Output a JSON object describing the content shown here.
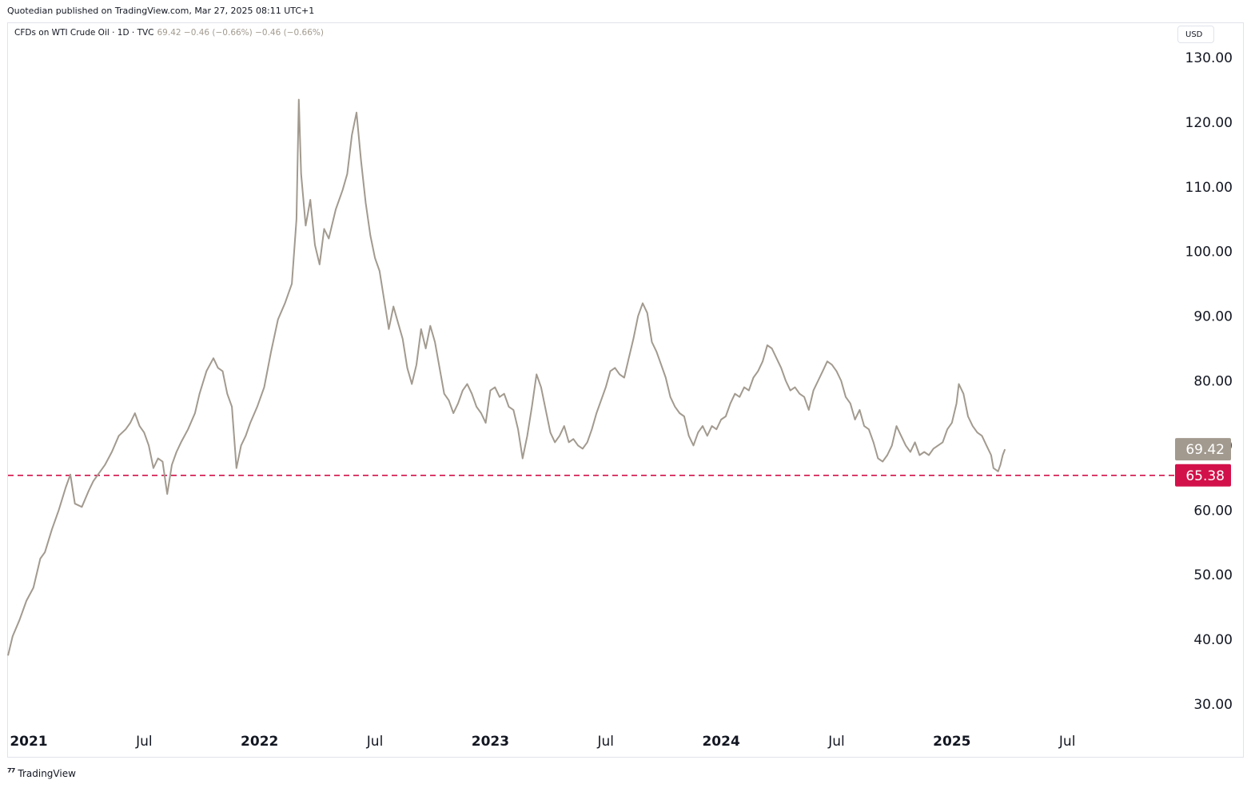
{
  "header": {
    "published_line": "Quotedian published on TradingView.com, Mar 27, 2025 08:11 UTC+1"
  },
  "legend": {
    "symbol": "CFDs on WTI Crude Oil · 1D · TVC",
    "values": "69.42  −0.46 (−0.66%)  −0.46 (−0.66%)"
  },
  "currency": "USD",
  "footer": {
    "brand": "TradingView",
    "logo_icon": "tradingview-logo-icon"
  },
  "colors": {
    "price_line": "#a29a8f",
    "support_line": "#d2114a",
    "last_price_bg": "#a29a8f"
  },
  "chart_data": {
    "type": "line",
    "title": "CFDs on WTI Crude Oil · 1D · TVC",
    "ylabel": "USD",
    "xlabel": "",
    "grid": false,
    "x_range": [
      2020.91,
      2025.96
    ],
    "ylim": [
      30,
      130
    ],
    "y_ticks": [
      30,
      40,
      50,
      60,
      70,
      80,
      90,
      100,
      110,
      120,
      130
    ],
    "y_tick_labels": [
      "30.00",
      "40.00",
      "50.00",
      "60.00",
      "70.00",
      "80.00",
      "90.00",
      "100.00",
      "110.00",
      "120.00",
      "130.00"
    ],
    "x_ticks": [
      {
        "x": 2021.0,
        "label": "2021",
        "bold": true
      },
      {
        "x": 2021.5,
        "label": "Jul",
        "bold": false
      },
      {
        "x": 2022.0,
        "label": "2022",
        "bold": true
      },
      {
        "x": 2022.5,
        "label": "Jul",
        "bold": false
      },
      {
        "x": 2023.0,
        "label": "2023",
        "bold": true
      },
      {
        "x": 2023.5,
        "label": "Jul",
        "bold": false
      },
      {
        "x": 2024.0,
        "label": "2024",
        "bold": true
      },
      {
        "x": 2024.5,
        "label": "Jul",
        "bold": false
      },
      {
        "x": 2025.0,
        "label": "2025",
        "bold": true
      },
      {
        "x": 2025.5,
        "label": "Jul",
        "bold": false
      }
    ],
    "series": [
      {
        "color": "#a29a8f",
        "points": [
          [
            2020.91,
            37.5
          ],
          [
            2020.93,
            40.5
          ],
          [
            2020.96,
            43.0
          ],
          [
            2020.99,
            46.0
          ],
          [
            2021.02,
            48.0
          ],
          [
            2021.05,
            52.5
          ],
          [
            2021.07,
            53.5
          ],
          [
            2021.1,
            57.0
          ],
          [
            2021.13,
            60.0
          ],
          [
            2021.16,
            63.5
          ],
          [
            2021.18,
            65.5
          ],
          [
            2021.2,
            61.0
          ],
          [
            2021.23,
            60.5
          ],
          [
            2021.26,
            63.0
          ],
          [
            2021.28,
            64.5
          ],
          [
            2021.3,
            65.5
          ],
          [
            2021.33,
            67.0
          ],
          [
            2021.36,
            69.0
          ],
          [
            2021.39,
            71.5
          ],
          [
            2021.42,
            72.5
          ],
          [
            2021.44,
            73.5
          ],
          [
            2021.46,
            75.0
          ],
          [
            2021.48,
            73.0
          ],
          [
            2021.5,
            72.0
          ],
          [
            2021.52,
            70.0
          ],
          [
            2021.54,
            66.5
          ],
          [
            2021.56,
            68.0
          ],
          [
            2021.58,
            67.5
          ],
          [
            2021.6,
            62.5
          ],
          [
            2021.62,
            67.0
          ],
          [
            2021.64,
            69.0
          ],
          [
            2021.66,
            70.5
          ],
          [
            2021.69,
            72.5
          ],
          [
            2021.72,
            75.0
          ],
          [
            2021.74,
            78.0
          ],
          [
            2021.77,
            81.5
          ],
          [
            2021.8,
            83.5
          ],
          [
            2021.82,
            82.0
          ],
          [
            2021.84,
            81.5
          ],
          [
            2021.86,
            78.0
          ],
          [
            2021.88,
            76.0
          ],
          [
            2021.9,
            66.5
          ],
          [
            2021.92,
            70.0
          ],
          [
            2021.94,
            71.5
          ],
          [
            2021.96,
            73.5
          ],
          [
            2021.99,
            76.0
          ],
          [
            2022.02,
            79.0
          ],
          [
            2022.05,
            84.5
          ],
          [
            2022.08,
            89.5
          ],
          [
            2022.11,
            92.0
          ],
          [
            2022.14,
            95.0
          ],
          [
            2022.16,
            105.0
          ],
          [
            2022.17,
            123.5
          ],
          [
            2022.18,
            112.0
          ],
          [
            2022.2,
            104.0
          ],
          [
            2022.22,
            108.0
          ],
          [
            2022.24,
            101.0
          ],
          [
            2022.26,
            98.0
          ],
          [
            2022.28,
            103.5
          ],
          [
            2022.3,
            102.0
          ],
          [
            2022.33,
            106.5
          ],
          [
            2022.36,
            109.5
          ],
          [
            2022.38,
            112.0
          ],
          [
            2022.4,
            118.0
          ],
          [
            2022.42,
            121.5
          ],
          [
            2022.44,
            114.0
          ],
          [
            2022.46,
            107.5
          ],
          [
            2022.48,
            102.5
          ],
          [
            2022.5,
            99.0
          ],
          [
            2022.52,
            97.0
          ],
          [
            2022.54,
            92.5
          ],
          [
            2022.56,
            88.0
          ],
          [
            2022.58,
            91.5
          ],
          [
            2022.6,
            89.0
          ],
          [
            2022.62,
            86.5
          ],
          [
            2022.64,
            82.0
          ],
          [
            2022.66,
            79.5
          ],
          [
            2022.68,
            82.5
          ],
          [
            2022.7,
            88.0
          ],
          [
            2022.72,
            85.0
          ],
          [
            2022.74,
            88.5
          ],
          [
            2022.76,
            86.0
          ],
          [
            2022.78,
            82.0
          ],
          [
            2022.8,
            78.0
          ],
          [
            2022.82,
            77.0
          ],
          [
            2022.84,
            75.0
          ],
          [
            2022.86,
            76.5
          ],
          [
            2022.88,
            78.5
          ],
          [
            2022.9,
            79.5
          ],
          [
            2022.92,
            78.0
          ],
          [
            2022.94,
            76.0
          ],
          [
            2022.96,
            75.0
          ],
          [
            2022.98,
            73.5
          ],
          [
            2023.0,
            78.5
          ],
          [
            2023.02,
            79.0
          ],
          [
            2023.04,
            77.5
          ],
          [
            2023.06,
            78.0
          ],
          [
            2023.08,
            76.0
          ],
          [
            2023.1,
            75.5
          ],
          [
            2023.12,
            72.5
          ],
          [
            2023.14,
            68.0
          ],
          [
            2023.16,
            71.5
          ],
          [
            2023.18,
            76.0
          ],
          [
            2023.2,
            81.0
          ],
          [
            2023.22,
            79.0
          ],
          [
            2023.24,
            75.5
          ],
          [
            2023.26,
            72.0
          ],
          [
            2023.28,
            70.5
          ],
          [
            2023.3,
            71.5
          ],
          [
            2023.32,
            73.0
          ],
          [
            2023.34,
            70.5
          ],
          [
            2023.36,
            71.0
          ],
          [
            2023.38,
            70.0
          ],
          [
            2023.4,
            69.5
          ],
          [
            2023.42,
            70.5
          ],
          [
            2023.44,
            72.5
          ],
          [
            2023.46,
            75.0
          ],
          [
            2023.48,
            77.0
          ],
          [
            2023.5,
            79.0
          ],
          [
            2023.52,
            81.5
          ],
          [
            2023.54,
            82.0
          ],
          [
            2023.56,
            81.0
          ],
          [
            2023.58,
            80.5
          ],
          [
            2023.6,
            83.5
          ],
          [
            2023.62,
            86.5
          ],
          [
            2023.64,
            90.0
          ],
          [
            2023.66,
            92.0
          ],
          [
            2023.68,
            90.5
          ],
          [
            2023.7,
            86.0
          ],
          [
            2023.72,
            84.5
          ],
          [
            2023.74,
            82.5
          ],
          [
            2023.76,
            80.5
          ],
          [
            2023.78,
            77.5
          ],
          [
            2023.8,
            76.0
          ],
          [
            2023.82,
            75.0
          ],
          [
            2023.84,
            74.5
          ],
          [
            2023.86,
            71.5
          ],
          [
            2023.88,
            70.0
          ],
          [
            2023.9,
            72.0
          ],
          [
            2023.92,
            73.0
          ],
          [
            2023.94,
            71.5
          ],
          [
            2023.96,
            73.0
          ],
          [
            2023.98,
            72.5
          ],
          [
            2024.0,
            74.0
          ],
          [
            2024.02,
            74.5
          ],
          [
            2024.04,
            76.5
          ],
          [
            2024.06,
            78.0
          ],
          [
            2024.08,
            77.5
          ],
          [
            2024.1,
            79.0
          ],
          [
            2024.12,
            78.5
          ],
          [
            2024.14,
            80.5
          ],
          [
            2024.16,
            81.5
          ],
          [
            2024.18,
            83.0
          ],
          [
            2024.2,
            85.5
          ],
          [
            2024.22,
            85.0
          ],
          [
            2024.24,
            83.5
          ],
          [
            2024.26,
            82.0
          ],
          [
            2024.28,
            80.0
          ],
          [
            2024.3,
            78.5
          ],
          [
            2024.32,
            79.0
          ],
          [
            2024.34,
            78.0
          ],
          [
            2024.36,
            77.5
          ],
          [
            2024.38,
            75.5
          ],
          [
            2024.4,
            78.5
          ],
          [
            2024.42,
            80.0
          ],
          [
            2024.44,
            81.5
          ],
          [
            2024.46,
            83.0
          ],
          [
            2024.48,
            82.5
          ],
          [
            2024.5,
            81.5
          ],
          [
            2024.52,
            80.0
          ],
          [
            2024.54,
            77.5
          ],
          [
            2024.56,
            76.5
          ],
          [
            2024.58,
            74.0
          ],
          [
            2024.6,
            75.5
          ],
          [
            2024.62,
            73.0
          ],
          [
            2024.64,
            72.5
          ],
          [
            2024.66,
            70.5
          ],
          [
            2024.68,
            68.0
          ],
          [
            2024.7,
            67.5
          ],
          [
            2024.72,
            68.5
          ],
          [
            2024.74,
            70.0
          ],
          [
            2024.76,
            73.0
          ],
          [
            2024.78,
            71.5
          ],
          [
            2024.8,
            70.0
          ],
          [
            2024.82,
            69.0
          ],
          [
            2024.84,
            70.5
          ],
          [
            2024.86,
            68.5
          ],
          [
            2024.88,
            69.0
          ],
          [
            2024.9,
            68.5
          ],
          [
            2024.92,
            69.5
          ],
          [
            2024.94,
            70.0
          ],
          [
            2024.96,
            70.5
          ],
          [
            2024.98,
            72.5
          ],
          [
            2025.0,
            73.5
          ],
          [
            2025.02,
            76.5
          ],
          [
            2025.03,
            79.5
          ],
          [
            2025.05,
            78.0
          ],
          [
            2025.07,
            74.5
          ],
          [
            2025.09,
            73.0
          ],
          [
            2025.11,
            72.0
          ],
          [
            2025.13,
            71.5
          ],
          [
            2025.15,
            70.0
          ],
          [
            2025.17,
            68.5
          ],
          [
            2025.18,
            66.5
          ],
          [
            2025.2,
            66.0
          ],
          [
            2025.21,
            67.0
          ],
          [
            2025.22,
            68.5
          ],
          [
            2025.23,
            69.42
          ]
        ]
      }
    ],
    "support_line": {
      "value": 65.38,
      "label": "65.38",
      "style": "dashed"
    },
    "last_price": {
      "value": 69.42,
      "label": "69.42"
    }
  }
}
